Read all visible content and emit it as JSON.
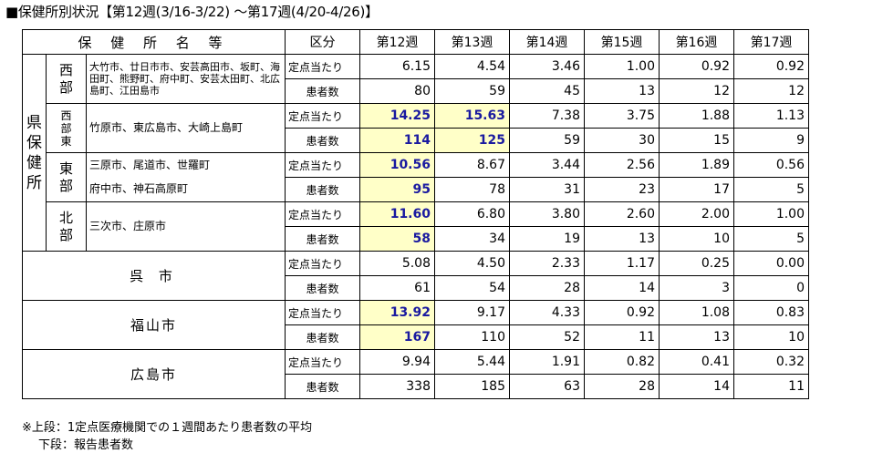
{
  "title": "■保健所別状況【第12週(3/16-3/22) ～第17週(4/20-4/26)】",
  "headers": {
    "name": "保 健 所 名 等",
    "category": "区分",
    "weeks": [
      "第12週",
      "第13週",
      "第14週",
      "第15週",
      "第16週",
      "第17週"
    ]
  },
  "labels": {
    "teiten": "定点当たり",
    "kanja": "患者数"
  },
  "prefectural": {
    "label": "県保健所",
    "districts": [
      {
        "name": "西部",
        "municipalities": "大竹市、廿日市市、安芸高田市、坂町、海田町、熊野町、府中町、安芸太田町、北広島町、江田島市",
        "teiten": [
          "6.15",
          "4.54",
          "3.46",
          "1.00",
          "0.92",
          "0.92"
        ],
        "kanja": [
          "80",
          "59",
          "45",
          "13",
          "12",
          "12"
        ]
      },
      {
        "name": "西部東",
        "municipalities": "竹原市、東広島市、大崎上島町",
        "teiten": [
          "14.25",
          "15.63",
          "7.38",
          "3.75",
          "1.88",
          "1.13"
        ],
        "kanja": [
          "114",
          "125",
          "59",
          "30",
          "15",
          "9"
        ]
      },
      {
        "name": "東部",
        "municipalities": [
          "三原市、尾道市、世羅町",
          "府中市、神石高原町"
        ],
        "teiten": [
          "10.56",
          "8.67",
          "3.44",
          "2.56",
          "1.89",
          "0.56"
        ],
        "kanja": [
          "95",
          "78",
          "31",
          "23",
          "17",
          "5"
        ]
      },
      {
        "name": "北部",
        "municipalities": "三次市、庄原市",
        "teiten": [
          "11.60",
          "6.80",
          "3.80",
          "2.60",
          "2.00",
          "1.00"
        ],
        "kanja": [
          "58",
          "34",
          "19",
          "13",
          "10",
          "5"
        ]
      }
    ]
  },
  "cities": [
    {
      "name": "呉 市",
      "teiten": [
        "5.08",
        "4.50",
        "2.33",
        "1.17",
        "0.25",
        "0.00"
      ],
      "kanja": [
        "61",
        "54",
        "28",
        "14",
        "3",
        "0"
      ]
    },
    {
      "name": "福山市",
      "teiten": [
        "13.92",
        "9.17",
        "4.33",
        "0.92",
        "1.08",
        "0.83"
      ],
      "kanja": [
        "167",
        "110",
        "52",
        "11",
        "13",
        "10"
      ]
    },
    {
      "name": "広島市",
      "teiten": [
        "9.94",
        "5.44",
        "1.91",
        "0.82",
        "0.41",
        "0.32"
      ],
      "kanja": [
        "338",
        "185",
        "63",
        "28",
        "14",
        "11"
      ]
    }
  ],
  "notes": [
    "※上段：1定点医療機関での１週間あたり患者数の平均",
    "下段：報告患者数"
  ],
  "colors": {
    "highlight_bg": "#ffffc8",
    "highlight_text": "#1a1aa0"
  }
}
